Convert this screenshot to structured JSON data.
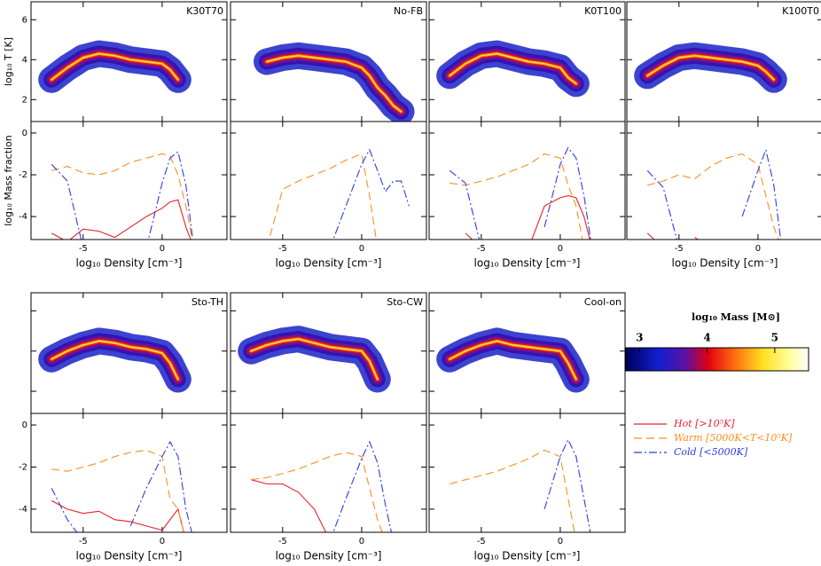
{
  "chart_data": [
    {
      "type": "phase",
      "label": "K30T70",
      "ylabel": "log₁₀ T [K]",
      "x": [
        -7,
        -6,
        -5,
        -4,
        -3,
        -2,
        -1,
        0,
        0.5,
        1,
        1.5,
        2,
        2.5
      ],
      "values": [
        3.0,
        3.6,
        4.1,
        4.3,
        4.2,
        4.0,
        3.9,
        3.8,
        3.5,
        3.0,
        null,
        null,
        null
      ],
      "xlim": [
        -8.3,
        4.1
      ],
      "ylim": [
        0.9,
        6.9
      ],
      "xticks": [
        -5,
        0
      ],
      "yticks": [
        2,
        4,
        6
      ],
      "xtick_labels": false,
      "ytick_labels": true
    },
    {
      "type": "phase",
      "label": "No-FB",
      "x": [
        -7,
        -6,
        -5,
        -4,
        -3,
        -2,
        -1,
        0,
        0.5,
        1,
        1.5,
        2,
        2.5
      ],
      "values": [
        null,
        3.9,
        4.1,
        4.2,
        4.1,
        4.0,
        3.9,
        3.6,
        3.2,
        2.6,
        2.2,
        1.7,
        1.4
      ],
      "xlim": [
        -8.3,
        4.1
      ],
      "ylim": [
        0.9,
        6.9
      ],
      "xticks": [
        -5,
        0
      ],
      "yticks": [
        2,
        4,
        6
      ],
      "xtick_labels": false,
      "ytick_labels": false
    },
    {
      "type": "phase",
      "label": "K0T100",
      "x": [
        -7,
        -6,
        -5,
        -4,
        -3,
        -2,
        -1,
        0,
        0.5,
        1,
        1.5,
        2,
        2.5
      ],
      "values": [
        3.2,
        3.8,
        4.2,
        4.3,
        4.1,
        3.9,
        3.8,
        3.6,
        3.1,
        2.8,
        null,
        null,
        null
      ],
      "xlim": [
        -8.3,
        4.1
      ],
      "ylim": [
        0.9,
        6.9
      ],
      "xticks": [
        -5,
        0
      ],
      "yticks": [
        2,
        4,
        6
      ],
      "xtick_labels": false,
      "ytick_labels": false
    },
    {
      "type": "phase",
      "label": "K100T0",
      "x": [
        -7,
        -6,
        -5,
        -4,
        -3,
        -2,
        -1,
        0,
        0.5,
        1,
        1.5,
        2,
        2.5
      ],
      "values": [
        3.2,
        3.7,
        4.1,
        4.2,
        4.1,
        4.0,
        3.9,
        3.7,
        3.4,
        3.0,
        null,
        null,
        null
      ],
      "xlim": [
        -8.3,
        4.1
      ],
      "ylim": [
        0.9,
        6.9
      ],
      "xticks": [
        -5,
        0
      ],
      "yticks": [
        2,
        4,
        6
      ],
      "xtick_labels": false,
      "ytick_labels": false
    },
    {
      "type": "line",
      "ylabel": "log₁₀ Mass fraction",
      "xlabel": "log₁₀ Density [cm⁻³]",
      "x": [
        -7,
        -6,
        -5,
        -4,
        -3,
        -2,
        -1,
        0,
        0.5,
        1,
        1.5,
        2,
        2.5,
        3
      ],
      "series": [
        {
          "values": [
            -4.8,
            -5.2,
            -4.6,
            -4.7,
            -5.0,
            -4.5,
            -4.0,
            -3.6,
            -3.3,
            -3.2,
            -4.5,
            -5.5,
            null,
            null
          ]
        },
        {
          "values": [
            -1.8,
            -1.6,
            -1.9,
            -2.0,
            -1.8,
            -1.4,
            -1.2,
            -1.0,
            -1.1,
            -2.0,
            -3.5,
            -5.5,
            null,
            null
          ]
        },
        {
          "values": [
            -1.5,
            -2.3,
            -5.5,
            null,
            null,
            null,
            -5.5,
            -2.4,
            -1.2,
            -0.9,
            -2.5,
            -5.5,
            null,
            null
          ]
        }
      ],
      "xlim": [
        -8.3,
        4.1
      ],
      "ylim": [
        -5.1,
        0.55
      ],
      "xticks": [
        -5,
        0
      ],
      "yticks": [
        0,
        -2,
        -4
      ],
      "xtick_labels": true,
      "ytick_labels": true
    },
    {
      "type": "line",
      "xlabel": "log₁₀ Density [cm⁻³]",
      "x": [
        -7,
        -6,
        -5,
        -4,
        -3,
        -2,
        -1,
        0,
        0.5,
        1,
        1.5,
        2,
        2.5,
        3
      ],
      "series": [
        {
          "values": [
            null,
            null,
            null,
            null,
            null,
            null,
            null,
            null,
            null,
            null,
            null,
            null,
            null,
            null
          ]
        },
        {
          "values": [
            null,
            -5.5,
            -2.7,
            -2.3,
            -2.0,
            -1.7,
            -1.3,
            -1.0,
            -3.0,
            -5.5,
            null,
            null,
            null,
            null
          ]
        },
        {
          "values": [
            null,
            null,
            null,
            null,
            null,
            -5.5,
            -3.5,
            -1.5,
            -0.8,
            -1.8,
            -2.8,
            -2.3,
            -2.3,
            -3.5
          ]
        }
      ],
      "xlim": [
        -8.3,
        4.1
      ],
      "ylim": [
        -5.1,
        0.55
      ],
      "xticks": [
        -5,
        0
      ],
      "yticks": [
        0,
        -2,
        -4
      ],
      "xtick_labels": true,
      "ytick_labels": false
    },
    {
      "type": "line",
      "xlabel": "log₁₀ Density [cm⁻³]",
      "x": [
        -7,
        -6,
        -5,
        -4,
        -3,
        -2,
        -1,
        0,
        0.5,
        1,
        1.5,
        2,
        2.5,
        3
      ],
      "series": [
        {
          "values": [
            null,
            -4.8,
            -5.5,
            null,
            null,
            -5.5,
            -3.5,
            -3.1,
            -3.0,
            -3.1,
            -4.0,
            -5.5,
            null,
            null
          ]
        },
        {
          "values": [
            -2.4,
            -2.5,
            -2.3,
            -2.1,
            -1.8,
            -1.5,
            -1.0,
            -1.2,
            -2.5,
            -3.5,
            -5.5,
            null,
            null,
            null
          ]
        },
        {
          "values": [
            -1.8,
            -2.4,
            -5.5,
            null,
            null,
            null,
            -4.5,
            -1.5,
            -0.7,
            -1.2,
            -3.0,
            -5.5,
            null,
            null
          ]
        }
      ],
      "xlim": [
        -8.3,
        4.1
      ],
      "ylim": [
        -5.1,
        0.55
      ],
      "xticks": [
        -5,
        0
      ],
      "yticks": [
        0,
        -2,
        -4
      ],
      "xtick_labels": true,
      "ytick_labels": false
    },
    {
      "type": "line",
      "xlabel": "log₁₀ Density [cm⁻³]",
      "x": [
        -7,
        -6,
        -5,
        -4,
        -3,
        -2,
        -1,
        0,
        0.5,
        1,
        1.5,
        2,
        2.5,
        3
      ],
      "series": [
        {
          "values": [
            -4.8,
            -5.5,
            null,
            -5.0,
            -5.5,
            null,
            null,
            null,
            null,
            null,
            null,
            null,
            null,
            null
          ]
        },
        {
          "values": [
            -2.5,
            -2.3,
            -2.0,
            -2.2,
            -1.6,
            -1.2,
            -1.0,
            -1.5,
            -3.0,
            -4.5,
            -5.5,
            null,
            null,
            null
          ]
        },
        {
          "values": [
            -1.8,
            -2.6,
            -5.5,
            null,
            null,
            null,
            -4.0,
            -1.8,
            -0.8,
            -2.5,
            -5.5,
            null,
            null,
            null
          ]
        }
      ],
      "xlim": [
        -8.3,
        4.1
      ],
      "ylim": [
        -5.1,
        0.55
      ],
      "xticks": [
        -5,
        0
      ],
      "yticks": [
        0,
        -2,
        -4
      ],
      "xtick_labels": true,
      "ytick_labels": false
    },
    {
      "type": "phase",
      "label": "Sto-TH",
      "x": [
        -7,
        -6,
        -5,
        -4,
        -3,
        -2,
        -1,
        0,
        0.5,
        1,
        1.5,
        2,
        2.5
      ],
      "values": [
        3.6,
        4.0,
        4.3,
        4.5,
        4.4,
        4.2,
        4.1,
        3.9,
        3.4,
        2.6,
        null,
        null,
        null
      ],
      "xlim": [
        -8.3,
        4.1
      ],
      "ylim": [
        0.9,
        6.9
      ],
      "xticks": [
        -5,
        0
      ],
      "yticks": [
        2,
        4,
        6
      ],
      "xtick_labels": false,
      "ytick_labels": false
    },
    {
      "type": "phase",
      "label": "Sto-CW",
      "x": [
        -7,
        -6,
        -5,
        -4,
        -3,
        -2,
        -1,
        0,
        0.5,
        1,
        1.5,
        2,
        2.5
      ],
      "values": [
        4.0,
        4.3,
        4.5,
        4.6,
        4.4,
        4.2,
        4.1,
        4.0,
        3.5,
        2.6,
        null,
        null,
        null
      ],
      "xlim": [
        -8.3,
        4.1
      ],
      "ylim": [
        0.9,
        6.9
      ],
      "xticks": [
        -5,
        0
      ],
      "yticks": [
        2,
        4,
        6
      ],
      "xtick_labels": false,
      "ytick_labels": false
    },
    {
      "type": "phase",
      "label": "Cool-on",
      "x": [
        -7,
        -6,
        -5,
        -4,
        -3,
        -2,
        -1,
        0,
        0.5,
        1,
        1.5,
        2,
        2.5
      ],
      "values": [
        3.6,
        4.0,
        4.3,
        4.5,
        4.3,
        4.2,
        4.1,
        4.0,
        3.4,
        2.6,
        null,
        null,
        null
      ],
      "xlim": [
        -8.3,
        4.1
      ],
      "ylim": [
        0.9,
        6.9
      ],
      "xticks": [
        -5,
        0
      ],
      "yticks": [
        2,
        4,
        6
      ],
      "xtick_labels": false,
      "ytick_labels": false
    },
    {
      "type": "line",
      "xlabel": "log₁₀ Density [cm⁻³]",
      "x": [
        -7,
        -6,
        -5,
        -4,
        -3,
        -2,
        -1,
        0,
        0.5,
        1,
        1.5,
        2,
        2.5,
        3
      ],
      "series": [
        {
          "values": [
            -3.6,
            -4.0,
            -4.2,
            -4.1,
            -4.5,
            -4.6,
            -4.8,
            -5.0,
            -4.5,
            -4.0,
            -5.5,
            null,
            null,
            null
          ]
        },
        {
          "values": [
            -2.1,
            -2.2,
            -2.0,
            -1.8,
            -1.5,
            -1.3,
            -1.2,
            -1.5,
            -3.5,
            -4.0,
            -5.5,
            null,
            null,
            null
          ]
        },
        {
          "values": [
            -3.0,
            -4.5,
            -5.5,
            null,
            null,
            -4.8,
            -3.0,
            -1.5,
            -0.8,
            -1.5,
            -4.0,
            -5.5,
            null,
            null
          ]
        }
      ],
      "xlim": [
        -8.3,
        4.1
      ],
      "ylim": [
        -5.1,
        0.55
      ],
      "xticks": [
        -5,
        0
      ],
      "yticks": [
        0,
        -2,
        -4
      ],
      "xtick_labels": true,
      "ytick_labels": true
    },
    {
      "type": "line",
      "xlabel": "log₁₀ Density [cm⁻³]",
      "x": [
        -7,
        -6,
        -5,
        -4,
        -3,
        -2,
        -1,
        0,
        0.5,
        1,
        1.5,
        2,
        2.5,
        3
      ],
      "series": [
        {
          "values": [
            -2.6,
            -2.8,
            -2.8,
            -3.2,
            -4.0,
            -5.5,
            null,
            null,
            null,
            null,
            null,
            null,
            null,
            null
          ]
        },
        {
          "values": [
            -2.6,
            -2.5,
            -2.3,
            -2.1,
            -1.8,
            -1.5,
            -1.3,
            -1.5,
            -3.0,
            -4.5,
            -5.5,
            null,
            null,
            null
          ]
        },
        {
          "values": [
            null,
            null,
            null,
            null,
            null,
            -5.5,
            -3.5,
            -1.6,
            -0.8,
            -1.8,
            -3.8,
            -5.5,
            null,
            null
          ]
        }
      ],
      "xlim": [
        -8.3,
        4.1
      ],
      "ylim": [
        -5.1,
        0.55
      ],
      "xticks": [
        -5,
        0
      ],
      "yticks": [
        0,
        -2,
        -4
      ],
      "xtick_labels": true,
      "ytick_labels": false
    },
    {
      "type": "line",
      "xlabel": "log₁₀ Density [cm⁻³]",
      "x": [
        -7,
        -6,
        -5,
        -4,
        -3,
        -2,
        -1,
        0,
        0.5,
        1,
        1.5,
        2,
        2.5,
        3
      ],
      "series": [
        {
          "values": [
            null,
            null,
            null,
            null,
            null,
            null,
            null,
            null,
            null,
            null,
            null,
            null,
            null,
            null
          ]
        },
        {
          "values": [
            -2.8,
            -2.6,
            -2.4,
            -2.2,
            -1.9,
            -1.6,
            -1.2,
            -1.5,
            -3.5,
            -5.5,
            null,
            null,
            null,
            null
          ]
        },
        {
          "values": [
            null,
            null,
            null,
            null,
            null,
            null,
            -4.0,
            -1.5,
            -0.7,
            -1.5,
            -3.5,
            -5.5,
            null,
            null
          ]
        }
      ],
      "xlim": [
        -8.3,
        4.1
      ],
      "ylim": [
        -5.1,
        0.55
      ],
      "xticks": [
        -5,
        0
      ],
      "yticks": [
        0,
        -2,
        -4
      ],
      "xtick_labels": true,
      "ytick_labels": false
    }
  ],
  "series_styles": [
    {
      "name": "Hot [>10⁵K]",
      "color": "#e8202a",
      "dash": "none"
    },
    {
      "name": "Warm [5000K<T<10⁵K]",
      "color": "#ff8c1a",
      "dash": "9,5"
    },
    {
      "name": "Cold [<5000K]",
      "color": "#2a3ce0",
      "dash": "9,3,2,3"
    }
  ],
  "colorbar": {
    "label": "log₁₀ Mass [M⊙]",
    "lim": [
      2.8,
      5.5
    ],
    "ticks": [
      3,
      4,
      5
    ]
  }
}
